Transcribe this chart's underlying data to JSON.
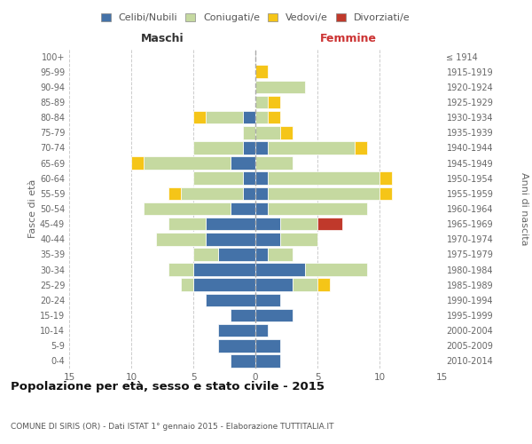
{
  "age_groups": [
    "0-4",
    "5-9",
    "10-14",
    "15-19",
    "20-24",
    "25-29",
    "30-34",
    "35-39",
    "40-44",
    "45-49",
    "50-54",
    "55-59",
    "60-64",
    "65-69",
    "70-74",
    "75-79",
    "80-84",
    "85-89",
    "90-94",
    "95-99",
    "100+"
  ],
  "birth_years": [
    "2010-2014",
    "2005-2009",
    "2000-2004",
    "1995-1999",
    "1990-1994",
    "1985-1989",
    "1980-1984",
    "1975-1979",
    "1970-1974",
    "1965-1969",
    "1960-1964",
    "1955-1959",
    "1950-1954",
    "1945-1949",
    "1940-1944",
    "1935-1939",
    "1930-1934",
    "1925-1929",
    "1920-1924",
    "1915-1919",
    "≤ 1914"
  ],
  "maschi": {
    "celibi": [
      2,
      3,
      3,
      2,
      4,
      5,
      5,
      3,
      4,
      4,
      2,
      1,
      1,
      2,
      1,
      0,
      1,
      0,
      0,
      0,
      0
    ],
    "coniugati": [
      0,
      0,
      0,
      0,
      0,
      1,
      2,
      2,
      4,
      3,
      7,
      5,
      4,
      7,
      4,
      1,
      3,
      0,
      0,
      0,
      0
    ],
    "vedovi": [
      0,
      0,
      0,
      0,
      0,
      0,
      0,
      0,
      0,
      0,
      0,
      1,
      0,
      1,
      0,
      0,
      1,
      0,
      0,
      0,
      0
    ],
    "divorziati": [
      0,
      0,
      0,
      0,
      0,
      0,
      0,
      0,
      0,
      0,
      0,
      0,
      0,
      0,
      0,
      0,
      0,
      0,
      0,
      0,
      0
    ]
  },
  "femmine": {
    "nubili": [
      2,
      2,
      1,
      3,
      2,
      3,
      4,
      1,
      2,
      2,
      1,
      1,
      1,
      0,
      1,
      0,
      0,
      0,
      0,
      0,
      0
    ],
    "coniugate": [
      0,
      0,
      0,
      0,
      0,
      2,
      5,
      2,
      3,
      3,
      8,
      9,
      9,
      3,
      7,
      2,
      1,
      1,
      4,
      0,
      0
    ],
    "vedove": [
      0,
      0,
      0,
      0,
      0,
      1,
      0,
      0,
      0,
      0,
      0,
      1,
      1,
      0,
      1,
      1,
      1,
      1,
      0,
      1,
      0
    ],
    "divorziate": [
      0,
      0,
      0,
      0,
      0,
      0,
      0,
      0,
      0,
      2,
      0,
      0,
      0,
      0,
      0,
      0,
      0,
      0,
      0,
      0,
      0
    ]
  },
  "colors": {
    "celibi_nubili": "#4472a8",
    "coniugati": "#c5d9a0",
    "vedovi": "#f5c518",
    "divorziati": "#c0392b"
  },
  "xlim": 15,
  "title": "Popolazione per età, sesso e stato civile - 2015",
  "subtitle": "COMUNE DI SIRIS (OR) - Dati ISTAT 1° gennaio 2015 - Elaborazione TUTTITALIA.IT",
  "ylabel_left": "Fasce di età",
  "ylabel_right": "Anni di nascita",
  "xlabel_left": "Maschi",
  "xlabel_right": "Femmine"
}
